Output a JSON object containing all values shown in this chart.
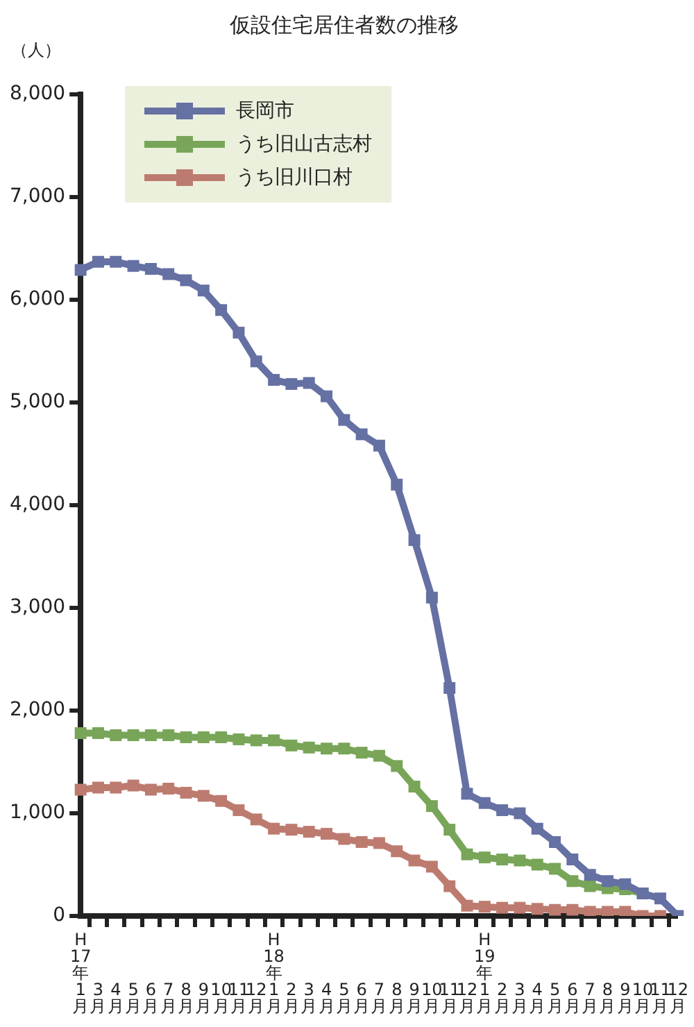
{
  "chart_data": {
    "type": "line",
    "title": "仮設住宅居住者数の推移",
    "ylabel": "（人）",
    "categories": [
      "H17年1月",
      "3月",
      "4月",
      "5月",
      "6月",
      "7月",
      "8月",
      "9月",
      "10月",
      "11月",
      "12月",
      "H18年1月",
      "2月",
      "3月",
      "4月",
      "5月",
      "6月",
      "7月",
      "8月",
      "9月",
      "10月",
      "11月",
      "12月",
      "H19年1月",
      "2月",
      "3月",
      "4月",
      "5月",
      "6月",
      "7月",
      "8月",
      "9月",
      "10月",
      "11月",
      "12月"
    ],
    "series": [
      {
        "name": "長岡市",
        "color": "#6570a3",
        "values": [
          6290,
          6370,
          6370,
          6330,
          6300,
          6250,
          6190,
          6090,
          5900,
          5680,
          5400,
          5220,
          5180,
          5190,
          5060,
          4830,
          4690,
          4580,
          4200,
          3660,
          3100,
          2220,
          1190,
          1100,
          1030,
          1000,
          850,
          720,
          550,
          400,
          340,
          310,
          220,
          170,
          0
        ]
      },
      {
        "name": "うち旧山古志村",
        "color": "#78a558",
        "values": [
          1780,
          1780,
          1760,
          1760,
          1760,
          1760,
          1740,
          1740,
          1740,
          1720,
          1710,
          1710,
          1660,
          1640,
          1630,
          1630,
          1590,
          1560,
          1460,
          1260,
          1070,
          840,
          600,
          570,
          550,
          540,
          500,
          460,
          340,
          290,
          270,
          260,
          220,
          null,
          null
        ]
      },
      {
        "name": "うち旧川口村",
        "color": "#bd7b6f",
        "values": [
          1230,
          1250,
          1250,
          1270,
          1230,
          1240,
          1200,
          1170,
          1120,
          1030,
          940,
          850,
          840,
          820,
          800,
          750,
          720,
          710,
          630,
          540,
          480,
          290,
          100,
          90,
          80,
          80,
          70,
          60,
          60,
          40,
          40,
          40,
          0,
          0,
          null
        ]
      }
    ],
    "ylim": [
      0,
      8000
    ],
    "yticks": [
      0,
      {
        "value": 1000,
        "label": "1,000"
      },
      {
        "value": 2000,
        "label": "2,000"
      },
      {
        "value": 3000,
        "label": "3,000"
      },
      {
        "value": 4000,
        "label": "4,000"
      },
      {
        "value": 5000,
        "label": "5,000"
      },
      {
        "value": 6000,
        "label": "6,000"
      },
      {
        "value": 7000,
        "label": "7,000"
      },
      {
        "value": 8000,
        "label": "8,000"
      }
    ],
    "grid": false,
    "legend": "top left",
    "marker": "square",
    "line_style": "solid"
  }
}
